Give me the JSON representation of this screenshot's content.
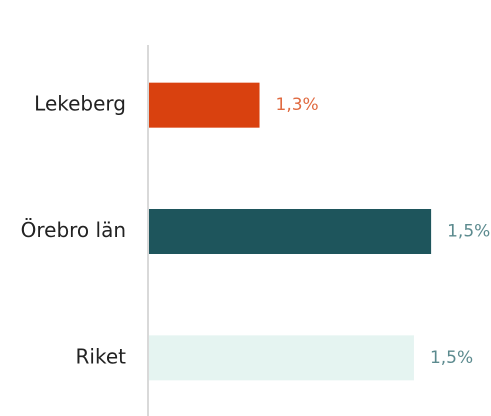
{
  "chart_data": {
    "type": "hbar",
    "categories": [
      "Lekeberg",
      "Örebro län",
      "Riket"
    ],
    "values": [
      1.3,
      1.5,
      1.48
    ],
    "value_labels": [
      "1,3%",
      "1,5%",
      "1,5%"
    ],
    "colors": [
      "#d9410f",
      "#1e555c",
      "#e5f4f1"
    ],
    "label_colors": [
      "#e06a40",
      "#5b8a8e",
      "#5b8a8e"
    ],
    "xlim": [
      1.17,
      1.55
    ]
  }
}
